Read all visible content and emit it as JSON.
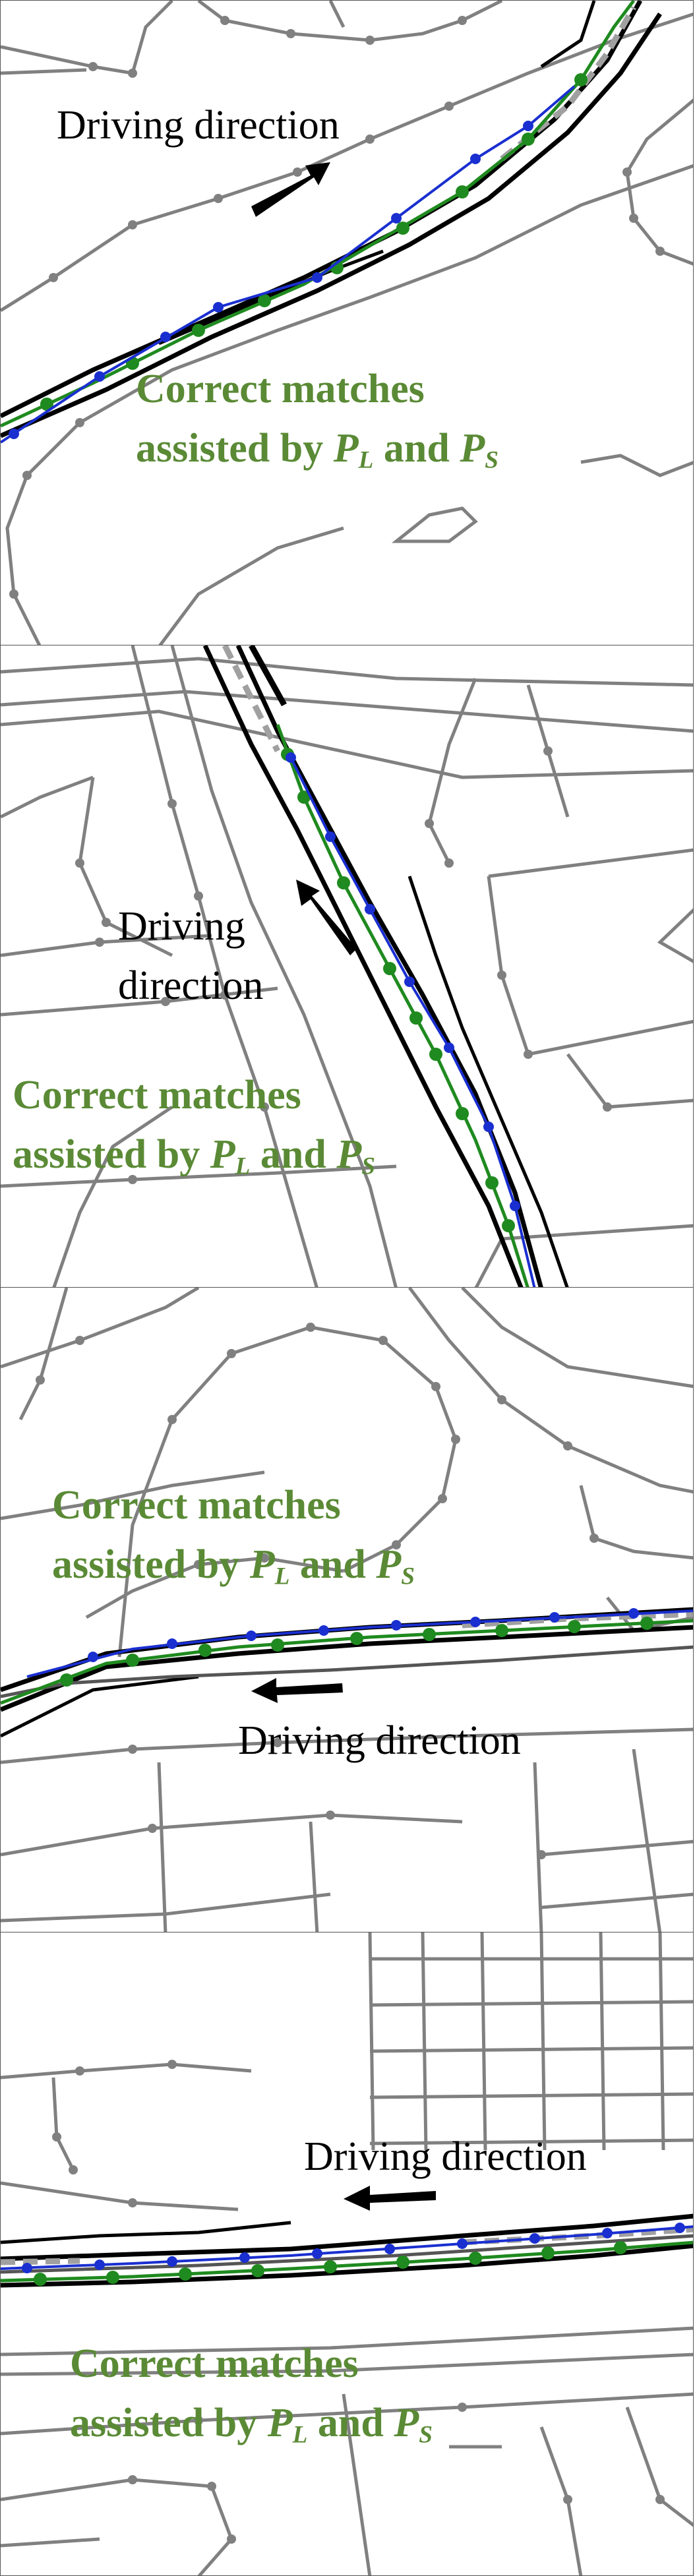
{
  "panels": [
    {
      "direction_label": "Driving direction",
      "match_line1": "Correct matches",
      "match_line2_prefix": "assisted by ",
      "match_and": " and ",
      "sym_L": "P",
      "sub_L": "L",
      "sym_S": "P",
      "sub_S": "S"
    },
    {
      "direction_line1": "Driving",
      "direction_line2": "direction",
      "match_line1": "Correct matches",
      "match_line2_prefix": "assisted by ",
      "match_and": " and ",
      "sym_L": "P",
      "sub_L": "L",
      "sym_S": "P",
      "sub_S": "S"
    },
    {
      "direction_label": "Driving direction",
      "match_line1": "Correct matches",
      "match_line2_prefix": "assisted by ",
      "match_and": " and ",
      "sym_L": "P",
      "sub_L": "L",
      "sym_S": "P",
      "sub_S": "S"
    },
    {
      "direction_label": "Driving direction",
      "match_line1": "Correct matches",
      "match_line2_prefix": "assisted by ",
      "match_and": " and ",
      "sym_L": "P",
      "sub_L": "L",
      "sym_S": "P",
      "sub_S": "S"
    }
  ],
  "colors": {
    "road_network": "#808080",
    "candidate_roads": "#000000",
    "matched_path": "#1f8a1f",
    "gps_trace": "#1a2fd0",
    "reference": "#a0a0a0",
    "label_green": "#5a8a35",
    "arrow": "#000000"
  },
  "icons": {
    "direction_arrow": "arrow-icon"
  }
}
